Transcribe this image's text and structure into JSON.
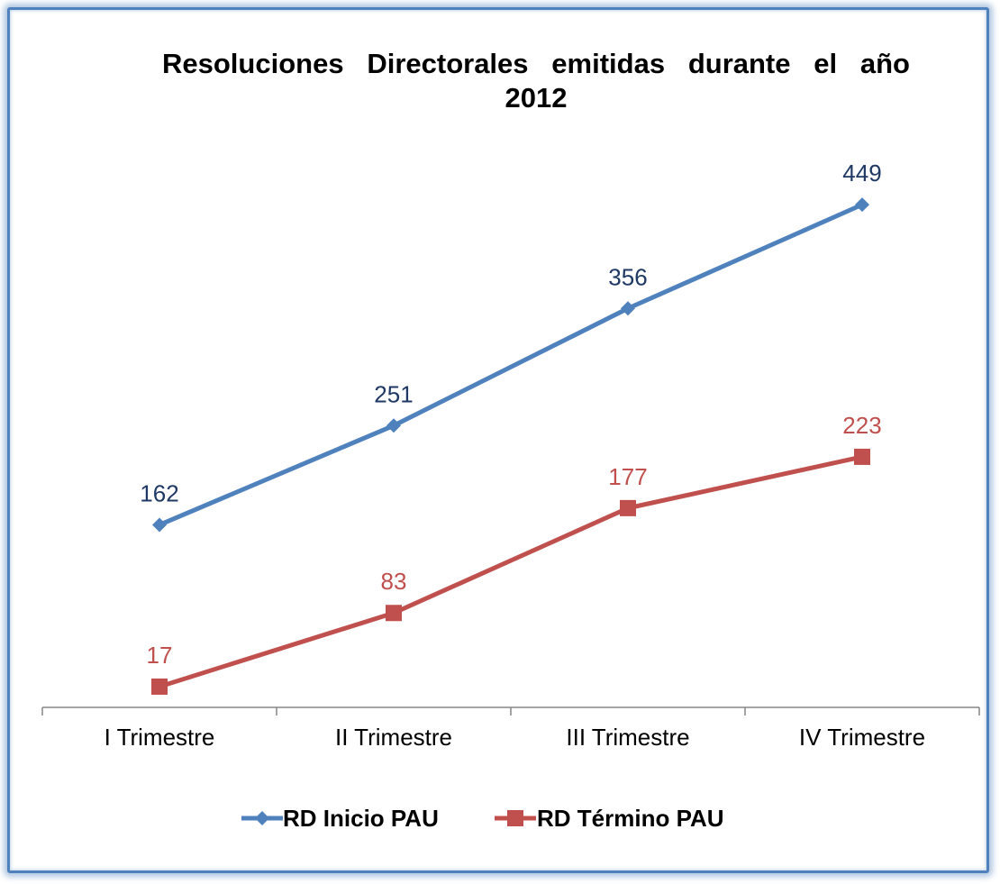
{
  "chart_data": {
    "type": "line",
    "title_line1": "Resoluciones Directorales emitidas durante el año",
    "title_line2": "2012",
    "categories": [
      "I Trimestre",
      "II Trimestre",
      "III Trimestre",
      "IV Trimestre"
    ],
    "series": [
      {
        "name": "RD Inicio PAU",
        "values": [
          162,
          251,
          356,
          449
        ],
        "color": "#4f81bd",
        "label_color": "#1f3864",
        "marker": "diamond"
      },
      {
        "name": "RD Término PAU",
        "values": [
          17,
          83,
          177,
          223
        ],
        "color": "#c0504d",
        "label_color": "#c0504d",
        "marker": "square"
      }
    ],
    "ylim": [
      0,
      500
    ],
    "grid": false,
    "legend_position": "bottom"
  }
}
